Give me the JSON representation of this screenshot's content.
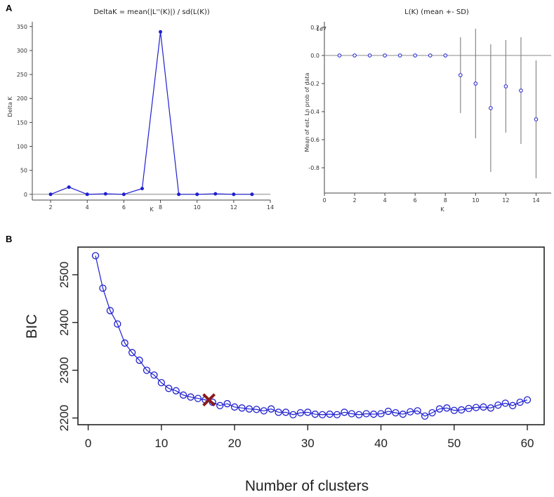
{
  "panels": {
    "a_letter": "A",
    "b_letter": "B"
  },
  "colors": {
    "blue": "#1f1fd0",
    "gray": "#888888",
    "red_mark": "#8b1a1a"
  },
  "chart_data": [
    {
      "id": "deltak",
      "type": "line",
      "title": "DeltaK = mean(|L''(K)|) / sd(L(K))",
      "xlabel": "K",
      "ylabel": "Delta K",
      "xlim": [
        1,
        14
      ],
      "ylim": [
        -12,
        360
      ],
      "xticks": [
        2,
        4,
        6,
        8,
        10,
        12,
        14
      ],
      "yticks": [
        0,
        50,
        100,
        150,
        200,
        250,
        300,
        350
      ],
      "x": [
        2,
        3,
        4,
        5,
        6,
        7,
        8,
        9,
        10,
        11,
        12,
        13
      ],
      "y": [
        0,
        15,
        0,
        1,
        0,
        12,
        339,
        0,
        0,
        1,
        0,
        0
      ],
      "grid": false
    },
    {
      "id": "lk",
      "type": "scatter",
      "title": "L(K) (mean +- SD)",
      "xlabel": "K",
      "ylabel": "Mean of est. Ln prob of data",
      "multiplier": "1e7",
      "xlim": [
        0,
        15
      ],
      "ylim": [
        -0.98,
        0.24
      ],
      "xticks": [
        0,
        2,
        4,
        6,
        8,
        10,
        12,
        14
      ],
      "yticks": [
        0.2,
        0.0,
        -0.2,
        -0.4,
        -0.6,
        -0.8
      ],
      "x": [
        1,
        2,
        3,
        4,
        5,
        6,
        7,
        8,
        9,
        10,
        11,
        12,
        13,
        14
      ],
      "y": [
        0,
        0,
        0,
        0,
        0,
        0,
        0,
        0,
        -0.14,
        -0.2,
        -0.375,
        -0.22,
        -0.25,
        -0.455
      ],
      "sd": [
        0,
        0,
        0,
        0,
        0,
        0,
        0,
        0,
        0.27,
        0.39,
        0.455,
        0.33,
        0.38,
        0.42
      ],
      "grid": false
    },
    {
      "id": "bic",
      "type": "line",
      "title": "",
      "xlabel": "Number of clusters",
      "ylabel": "BIC",
      "xlim": [
        -1.4,
        62.3
      ],
      "ylim": [
        2186,
        2558
      ],
      "xticks": [
        0,
        10,
        20,
        30,
        40,
        50,
        60
      ],
      "yticks": [
        2200,
        2300,
        2400,
        2500
      ],
      "x": [
        1,
        2,
        3,
        4,
        5,
        6,
        7,
        8,
        9,
        10,
        11,
        12,
        13,
        14,
        15,
        16,
        17,
        18,
        19,
        20,
        21,
        22,
        23,
        24,
        25,
        26,
        27,
        28,
        29,
        30,
        31,
        32,
        33,
        34,
        35,
        36,
        37,
        38,
        39,
        40,
        41,
        42,
        43,
        44,
        45,
        46,
        47,
        48,
        49,
        50,
        51,
        52,
        53,
        54,
        55,
        56,
        57,
        58,
        59,
        60
      ],
      "y": [
        2540,
        2472,
        2425,
        2397,
        2357,
        2337,
        2321,
        2300,
        2290,
        2274,
        2262,
        2257,
        2248,
        2244,
        2241,
        2238,
        2233,
        2226,
        2230,
        2223,
        2221,
        2219,
        2218,
        2215,
        2219,
        2212,
        2212,
        2207,
        2211,
        2212,
        2208,
        2207,
        2208,
        2207,
        2212,
        2209,
        2207,
        2209,
        2208,
        2209,
        2214,
        2211,
        2208,
        2213,
        2215,
        2204,
        2211,
        2219,
        2221,
        2216,
        2217,
        2220,
        2222,
        2223,
        2221,
        2227,
        2231,
        2226,
        2233,
        2238
      ],
      "marker_x": 16.5,
      "marker_y": 2238,
      "grid": false
    }
  ]
}
